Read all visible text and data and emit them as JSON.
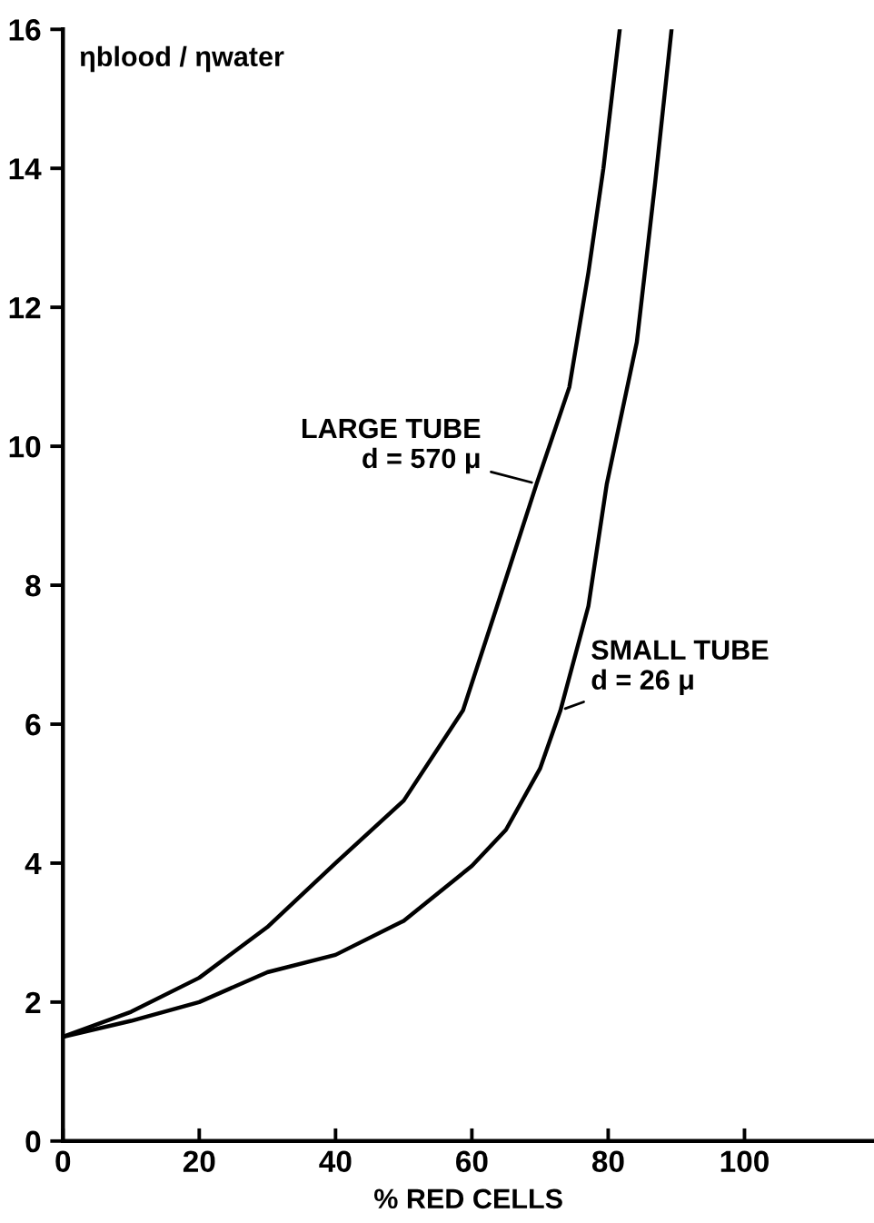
{
  "chart_data": {
    "type": "line",
    "xlabel": "% RED CELLS",
    "ylabel": "ηblood / ηwater",
    "xlim": [
      0,
      119
    ],
    "ylim": [
      0,
      16
    ],
    "xticks": [
      0,
      20,
      40,
      60,
      80,
      100
    ],
    "yticks": [
      0,
      2,
      4,
      6,
      8,
      10,
      12,
      14,
      16
    ],
    "grid": false,
    "legend": false,
    "marker": "none",
    "line_style": "solid",
    "series": [
      {
        "color": "#000000",
        "x": [
          0,
          10,
          20,
          30,
          40,
          50,
          58.7,
          63.7,
          69.5,
          74.3,
          77.1,
          79.3,
          81.7
        ],
        "values": [
          1.5,
          1.86,
          2.35,
          3.08,
          4.0,
          4.9,
          6.2,
          7.7,
          9.46,
          10.85,
          12.5,
          14.0,
          16
        ]
      },
      {
        "color": "#000000",
        "x": [
          0,
          10,
          20,
          30,
          40,
          50,
          60,
          65,
          70,
          73,
          77.1,
          79.8,
          84.2,
          86.9,
          89.3
        ],
        "values": [
          1.5,
          1.73,
          2.0,
          2.43,
          2.68,
          3.17,
          3.96,
          4.48,
          5.36,
          6.2,
          7.7,
          9.46,
          11.5,
          13.8,
          16
        ]
      }
    ],
    "annotations": [
      {
        "text": "LARGE TUBE\nd = 570 μ",
        "x": 69.5,
        "y": 9.46
      },
      {
        "text": "SMALL TUBE\nd = 26 μ",
        "x": 73,
        "y": 6.2
      }
    ]
  }
}
